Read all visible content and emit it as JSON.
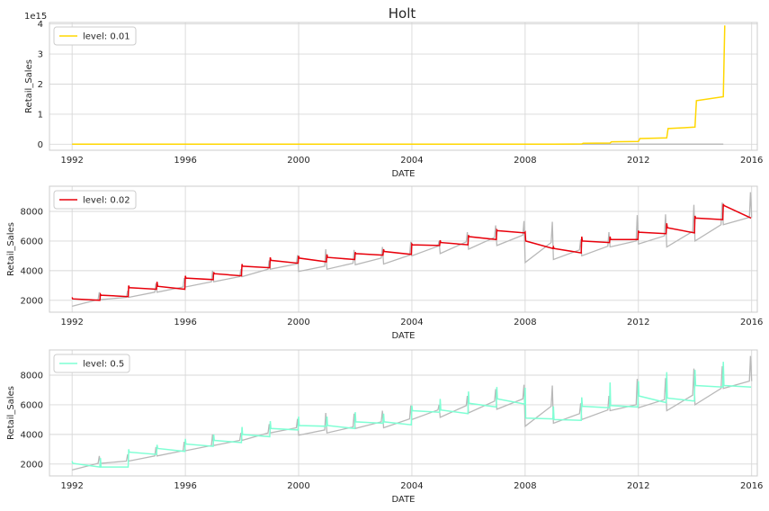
{
  "figure": {
    "title": "Holt"
  },
  "chart_data": [
    {
      "type": "line",
      "xlabel": "DATE",
      "ylabel": "Retail_Sales",
      "offset_text": "1e15",
      "xlim": [
        1991.2,
        2016.2
      ],
      "ylim": [
        -0.2,
        4.05
      ],
      "xticks": [
        1992,
        1996,
        2000,
        2004,
        2008,
        2012,
        2016
      ],
      "yticks": [
        0,
        1,
        2,
        3,
        4
      ],
      "grid": true,
      "legend": {
        "position": "upper left",
        "entries": [
          {
            "label": "level: 0.01",
            "color": "#ffd700"
          }
        ]
      },
      "series": [
        {
          "name": "level: 0.01",
          "color": "#ffd700",
          "x": [
            1992,
            2008,
            2009,
            2010,
            2010.05,
            2011,
            2011.05,
            2012,
            2012.05,
            2013,
            2013.05,
            2014,
            2014.05,
            2015,
            2015.05
          ],
          "values": [
            0,
            0,
            0.005,
            0.01,
            0.03,
            0.04,
            0.08,
            0.09,
            0.19,
            0.21,
            0.52,
            0.57,
            1.45,
            1.58,
            3.95
          ]
        },
        {
          "color": "#bdbdbd",
          "x": [
            1992,
            2015
          ],
          "values": [
            0,
            0
          ]
        }
      ]
    },
    {
      "type": "line",
      "xlabel": "DATE",
      "ylabel": "Retail_Sales",
      "xlim": [
        1991.2,
        2016.2
      ],
      "ylim": [
        1200,
        9700
      ],
      "xticks": [
        1992,
        1996,
        2000,
        2004,
        2008,
        2012,
        2016
      ],
      "yticks": [
        2000,
        4000,
        6000,
        8000
      ],
      "grid": true,
      "legend": {
        "position": "upper left",
        "entries": [
          {
            "label": "level: 0.02",
            "color": "#e8000b"
          }
        ]
      },
      "actual": {
        "color": "#b8b8b8",
        "years": [
          1992,
          1993,
          1994,
          1995,
          1996,
          1997,
          1998,
          1999,
          2000,
          2001,
          2002,
          2003,
          2004,
          2005,
          2006,
          2007,
          2008,
          2009,
          2010,
          2011,
          2012,
          2013,
          2014,
          2015
        ],
        "start": [
          1600,
          2050,
          2200,
          2550,
          2900,
          3250,
          3600,
          4100,
          3950,
          4100,
          4400,
          4450,
          5000,
          5150,
          5450,
          5700,
          4550,
          4750,
          5000,
          5600,
          5800,
          5600,
          6000,
          7100
        ],
        "end": [
          2050,
          2200,
          2550,
          2900,
          3250,
          3600,
          4100,
          4450,
          4300,
          4500,
          4850,
          5050,
          5650,
          5950,
          6250,
          6400,
          5900,
          5400,
          5650,
          6000,
          6350,
          6650,
          7100,
          7600
        ],
        "peak": [
          2550,
          2650,
          3150,
          3500,
          4000,
          4100,
          4700,
          5050,
          5450,
          5400,
          5600,
          5950,
          6000,
          6600,
          7050,
          7350,
          7300,
          6100,
          6600,
          7750,
          7800,
          8450,
          8600,
          9300
        ]
      },
      "fitted": {
        "color": "#e8000b",
        "years": [
          1992,
          1993,
          1994,
          1995,
          1996,
          1997,
          1998,
          1999,
          2000,
          2001,
          2002,
          2003,
          2004,
          2005,
          2006,
          2007,
          2008,
          2009,
          2010,
          2011,
          2012,
          2013,
          2014,
          2015
        ],
        "start": [
          2100,
          2350,
          2850,
          2950,
          3500,
          3800,
          4300,
          4700,
          4850,
          4900,
          5150,
          5300,
          5750,
          5900,
          6300,
          6700,
          6000,
          5500,
          6000,
          6100,
          6600,
          6900,
          7550,
          8400
        ],
        "end": [
          2000,
          2250,
          2750,
          2750,
          3400,
          3650,
          4200,
          4500,
          4600,
          4750,
          5050,
          5100,
          5700,
          5750,
          6100,
          6550,
          5500,
          5200,
          5900,
          6100,
          6500,
          6550,
          7450,
          7550
        ],
        "spike": [
          2200,
          2400,
          3000,
          3250,
          3650,
          3900,
          4450,
          4900,
          5000,
          5100,
          5250,
          5450,
          5800,
          6050,
          6400,
          6750,
          6600,
          5600,
          6300,
          6300,
          6700,
          7200,
          7700,
          8500
        ]
      }
    },
    {
      "type": "line",
      "xlabel": "DATE",
      "ylabel": "Retail_Sales",
      "xlim": [
        1991.2,
        2016.2
      ],
      "ylim": [
        1200,
        9700
      ],
      "xticks": [
        1992,
        1996,
        2000,
        2004,
        2008,
        2012,
        2016
      ],
      "yticks": [
        2000,
        4000,
        6000,
        8000
      ],
      "grid": true,
      "legend": {
        "position": "upper left",
        "entries": [
          {
            "label": "level: 0.5",
            "color": "#7fffd4"
          }
        ]
      },
      "actual": {
        "color": "#b8b8b8",
        "years": [
          1992,
          1993,
          1994,
          1995,
          1996,
          1997,
          1998,
          1999,
          2000,
          2001,
          2002,
          2003,
          2004,
          2005,
          2006,
          2007,
          2008,
          2009,
          2010,
          2011,
          2012,
          2013,
          2014,
          2015
        ],
        "start": [
          1600,
          2050,
          2200,
          2550,
          2900,
          3250,
          3600,
          4100,
          3950,
          4100,
          4400,
          4450,
          5000,
          5150,
          5450,
          5700,
          4550,
          4750,
          5000,
          5600,
          5800,
          5600,
          6000,
          7100
        ],
        "end": [
          2050,
          2200,
          2550,
          2900,
          3250,
          3600,
          4100,
          4450,
          4300,
          4500,
          4850,
          5050,
          5650,
          5950,
          6250,
          6400,
          5900,
          5400,
          5650,
          6000,
          6350,
          6650,
          7100,
          7600
        ],
        "peak": [
          2550,
          2650,
          3150,
          3500,
          4000,
          4100,
          4700,
          5050,
          5450,
          5400,
          5600,
          5950,
          6000,
          6600,
          7050,
          7350,
          7300,
          6100,
          6600,
          7750,
          7800,
          8450,
          8600,
          9300
        ]
      },
      "fitted": {
        "color": "#7fffd4",
        "years": [
          1992,
          1993,
          1994,
          1995,
          1996,
          1997,
          1998,
          1999,
          2000,
          2001,
          2002,
          2003,
          2004,
          2005,
          2006,
          2007,
          2008,
          2009,
          2010,
          2011,
          2012,
          2013,
          2014,
          2015
        ],
        "start": [
          2050,
          1800,
          2800,
          3050,
          3350,
          3600,
          4000,
          4400,
          4600,
          4600,
          4850,
          4850,
          5600,
          5650,
          6100,
          6400,
          5100,
          5000,
          5900,
          5950,
          6600,
          6450,
          7300,
          7300
        ],
        "end": [
          1800,
          1800,
          2650,
          2850,
          3200,
          3450,
          3850,
          4300,
          4550,
          4400,
          4750,
          4650,
          5500,
          5400,
          5850,
          6050,
          5050,
          4950,
          5800,
          5850,
          6150,
          6250,
          7200,
          7200
        ],
        "spike": [
          2200,
          2400,
          3000,
          3300,
          3700,
          4000,
          4500,
          4900,
          5200,
          5200,
          5500,
          5400,
          5950,
          6400,
          6900,
          7200,
          7150,
          5900,
          6500,
          7500,
          7600,
          8200,
          8350,
          8900
        ]
      }
    }
  ]
}
